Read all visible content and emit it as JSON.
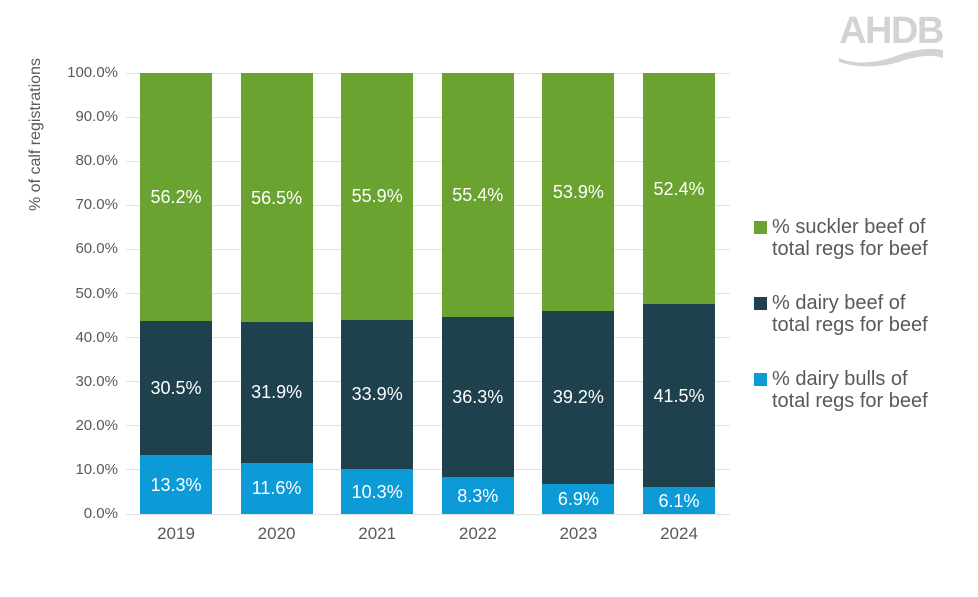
{
  "logo": {
    "text": "AHDB"
  },
  "colors": {
    "background": "#ffffff",
    "axis_text": "#595959",
    "gridline": "#e2e2e2",
    "bar_label_text": "#ffffff",
    "logo": "#d3d3d3",
    "suckler_green": "#6ba331",
    "dairy_beef_navy": "#1f414e",
    "dairy_bulls_blue": "#0d9bd7"
  },
  "chart_data": {
    "type": "bar",
    "variant": "100-percent-stacked-column",
    "title": "",
    "xlabel": "",
    "ylabel": "% of calf registrations",
    "ylim": [
      0,
      100
    ],
    "yticks": [
      "0.0%",
      "10.0%",
      "20.0%",
      "30.0%",
      "40.0%",
      "50.0%",
      "60.0%",
      "70.0%",
      "80.0%",
      "90.0%",
      "100.0%"
    ],
    "grid": true,
    "legend_position": "right",
    "bar_label_format": "{value}%",
    "categories": [
      "2019",
      "2020",
      "2021",
      "2022",
      "2023",
      "2024"
    ],
    "series": [
      {
        "name": "% suckler beef of total regs for beef",
        "legend_lines": [
          "% suckler beef of",
          "total regs for beef"
        ],
        "color": "#6ba331",
        "values": [
          56.2,
          56.5,
          55.9,
          55.4,
          53.9,
          52.4
        ]
      },
      {
        "name": "% dairy beef of total regs for beef",
        "legend_lines": [
          "% dairy beef of",
          "total regs for beef"
        ],
        "color": "#1f414e",
        "values": [
          30.5,
          31.9,
          33.9,
          36.3,
          39.2,
          41.5
        ]
      },
      {
        "name": "% dairy bulls of total regs for beef",
        "legend_lines": [
          "% dairy bulls of",
          "total regs for beef"
        ],
        "color": "#0d9bd7",
        "values": [
          13.3,
          11.6,
          10.3,
          8.3,
          6.9,
          6.1
        ]
      }
    ],
    "stack_order_bottom_to_top": [
      "% dairy bulls of total regs for beef",
      "% dairy beef of total regs for beef",
      "% suckler beef of total regs for beef"
    ]
  }
}
